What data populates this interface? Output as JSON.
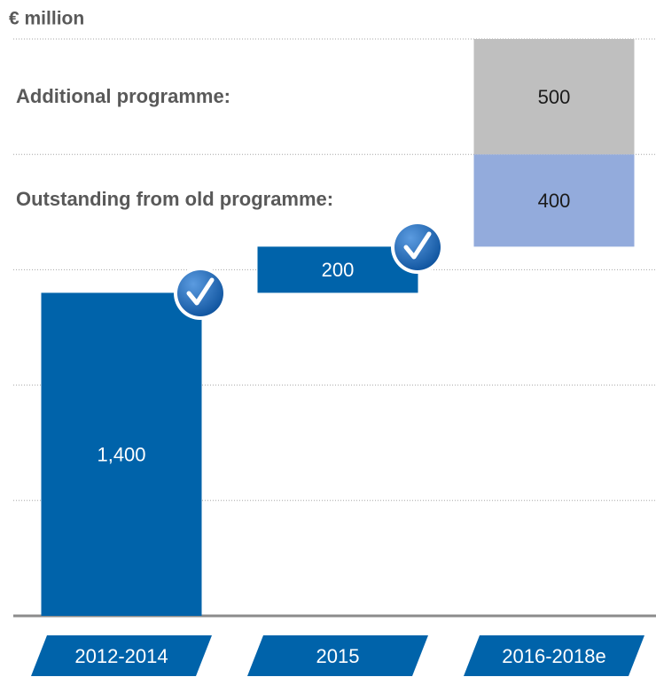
{
  "chart_data": {
    "type": "waterfall",
    "title": "€ million",
    "categories": [
      "2012-2014",
      "2015",
      "2016-2018e"
    ],
    "values": [
      1400,
      200,
      400
    ],
    "value_labels": [
      "1,400",
      "200",
      "400"
    ],
    "colors": [
      "#0063aa",
      "#0063aa",
      "#93abdc"
    ],
    "series_label": "Outstanding from old programme:",
    "additional": {
      "name": "Additional programme:",
      "value": 500,
      "color": "#bfbfbf"
    },
    "ylim": [
      0,
      2500
    ],
    "yticks": [
      0,
      500,
      1000,
      1500,
      2000,
      2500
    ],
    "grid": true
  }
}
